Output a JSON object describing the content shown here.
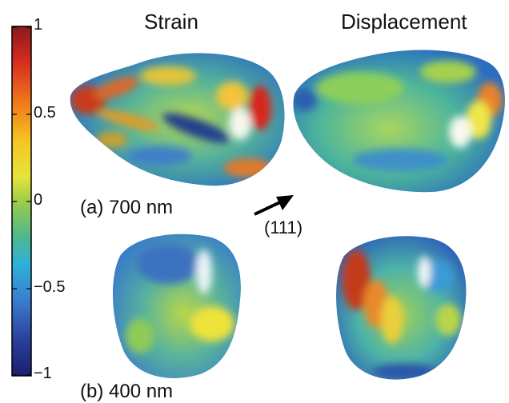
{
  "columns": {
    "strain": "Strain",
    "displacement": "Displacement"
  },
  "colorbar": {
    "ticks": [
      "1",
      "0.5",
      "0",
      "−0.5",
      "−1"
    ],
    "colors": [
      "#8b1a1a",
      "#d62b1f",
      "#f07a1a",
      "#f5c623",
      "#e6e43a",
      "#9ccc4a",
      "#4fb88a",
      "#2cb2d8",
      "#3a7fd0",
      "#2a3f9a",
      "#1a1f70"
    ]
  },
  "panels": {
    "a": "(a) 700 nm",
    "b": "(b) 400 nm"
  },
  "direction": {
    "label": "(111)",
    "icon": "arrow-icon"
  }
}
